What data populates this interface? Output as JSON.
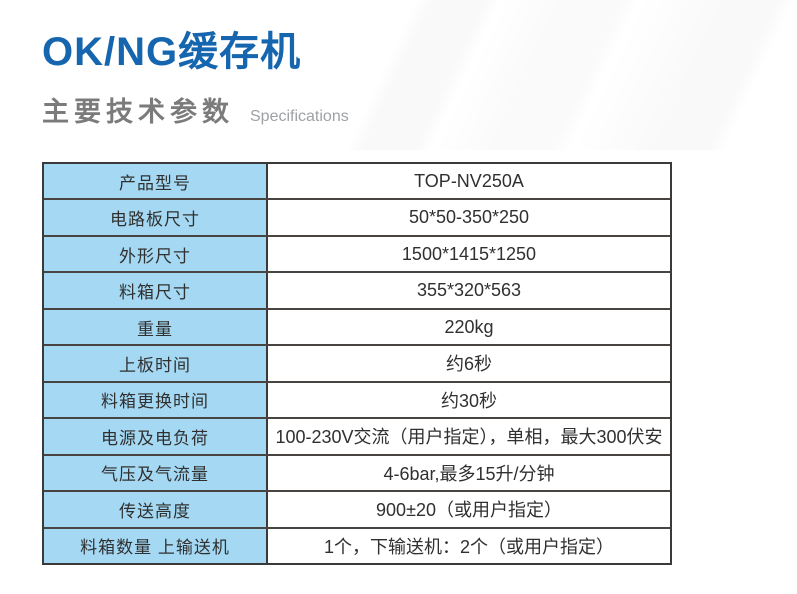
{
  "page": {
    "title": "OK/NG缓存机",
    "section_title": "主要技术参数",
    "section_subtitle": "Specifications"
  },
  "colors": {
    "title_blue": "#1565AF",
    "section_gray": "#7B7B7B",
    "subtitle_gray": "#9EA2A5",
    "cell_blue": "#A4D8F3",
    "table_border": "#3A3A3A",
    "text_dark": "#303030"
  },
  "spec_table": {
    "rows": [
      {
        "label": "产品型号",
        "value": "TOP-NV250A"
      },
      {
        "label": "电路板尺寸",
        "value": "50*50-350*250"
      },
      {
        "label": "外形尺寸",
        "value": "1500*1415*1250"
      },
      {
        "label": "料箱尺寸",
        "value": "355*320*563"
      },
      {
        "label": "重量",
        "value": "220kg"
      },
      {
        "label": "上板时间",
        "value": "约6秒"
      },
      {
        "label": "料箱更换时间",
        "value": "约30秒"
      },
      {
        "label": "电源及电负荷",
        "value": "100-230V交流（用户指定），单相，最大300伏安"
      },
      {
        "label": "气压及气流量",
        "value": "4-6bar,最多15升/分钟"
      },
      {
        "label": "传送高度",
        "value": "900±20（或用户指定）"
      },
      {
        "label": "料箱数量 上输送机",
        "value": "1个，下输送机：2个（或用户指定）"
      }
    ]
  }
}
